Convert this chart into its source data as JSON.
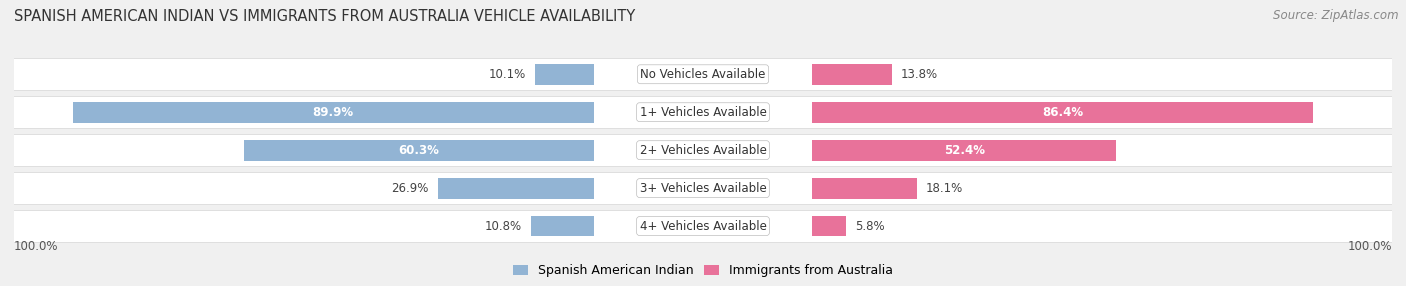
{
  "title": "SPANISH AMERICAN INDIAN VS IMMIGRANTS FROM AUSTRALIA VEHICLE AVAILABILITY",
  "source": "Source: ZipAtlas.com",
  "categories": [
    "No Vehicles Available",
    "1+ Vehicles Available",
    "2+ Vehicles Available",
    "3+ Vehicles Available",
    "4+ Vehicles Available"
  ],
  "left_values": [
    10.1,
    89.9,
    60.3,
    26.9,
    10.8
  ],
  "right_values": [
    13.8,
    86.4,
    52.4,
    18.1,
    5.8
  ],
  "left_label": "Spanish American Indian",
  "right_label": "Immigrants from Australia",
  "left_color": "#92b4d4",
  "right_color": "#e8729a",
  "left_text_color_in": "#ffffff",
  "right_text_color_in": "#ffffff",
  "axis_label_left": "100.0%",
  "axis_label_right": "100.0%",
  "bg_color": "#f0f0f0",
  "title_fontsize": 10.5,
  "source_fontsize": 8.5,
  "bar_label_fontsize": 8.5,
  "category_fontsize": 8.5,
  "legend_fontsize": 9,
  "max_val": 100.0,
  "bar_height": 0.55
}
